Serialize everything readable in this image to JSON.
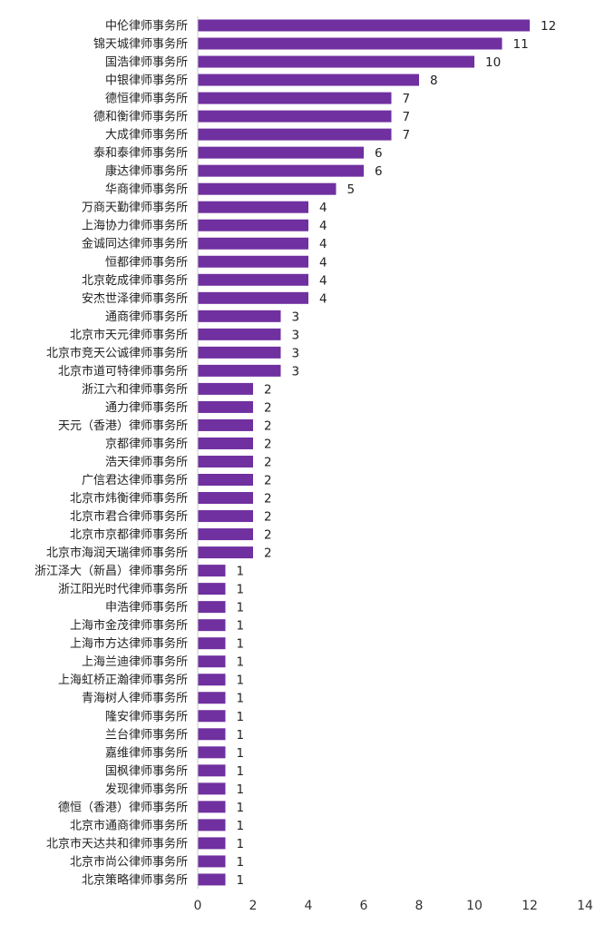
{
  "chart_data": {
    "type": "bar",
    "orientation": "horizontal",
    "bar_color": "#7030A0",
    "axis_color": "#c8c8c8",
    "xlim": [
      0,
      14
    ],
    "x_ticks": [
      0,
      2,
      4,
      6,
      8,
      10,
      12,
      14
    ],
    "grid": false,
    "legend": "none",
    "categories": [
      "中伦律师事务所",
      "锦天城律师事务所",
      "国浩律师事务所",
      "中银律师事务所",
      "德恒律师事务所",
      "德和衡律师事务所",
      "大成律师事务所",
      "泰和泰律师事务所",
      "康达律师事务所",
      "华商律师事务所",
      "万商天勤律师事务所",
      "上海协力律师事务所",
      "金诚同达律师事务所",
      "恒都律师事务所",
      "北京乾成律师事务所",
      "安杰世泽律师事务所",
      "通商律师事务所",
      "北京市天元律师事务所",
      "北京市竞天公诚律师事务所",
      "北京市道可特律师事务所",
      "浙江六和律师事务所",
      "通力律师事务所",
      "天元（香港）律师事务所",
      "京都律师事务所",
      "浩天律师事务所",
      "广信君达律师事务所",
      "北京市炜衡律师事务所",
      "北京市君合律师事务所",
      "北京市京都律师事务所",
      "北京市海润天瑞律师事务所",
      "浙江泽大（新昌）律师事务所",
      "浙江阳光时代律师事务所",
      "申浩律师事务所",
      "上海市金茂律师事务所",
      "上海市方达律师事务所",
      "上海兰迪律师事务所",
      "上海虹桥正瀚律师事务所",
      "青海树人律师事务所",
      "隆安律师事务所",
      "兰台律师事务所",
      "嘉维律师事务所",
      "国枫律师事务所",
      "发现律师事务所",
      "德恒（香港）律师事务所",
      "北京市通商律师事务所",
      "北京市天达共和律师事务所",
      "北京市尚公律师事务所",
      "北京策略律师事务所"
    ],
    "values": [
      12,
      11,
      10,
      8,
      7,
      7,
      7,
      6,
      6,
      5,
      4,
      4,
      4,
      4,
      4,
      4,
      3,
      3,
      3,
      3,
      2,
      2,
      2,
      2,
      2,
      2,
      2,
      2,
      2,
      2,
      1,
      1,
      1,
      1,
      1,
      1,
      1,
      1,
      1,
      1,
      1,
      1,
      1,
      1,
      1,
      1,
      1,
      1
    ]
  }
}
